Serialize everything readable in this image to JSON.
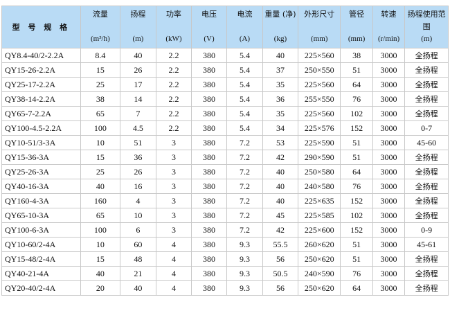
{
  "header": {
    "model": "型 号 规 格",
    "columns": [
      {
        "label": "流量",
        "unit": "(m³/h)"
      },
      {
        "label": "扬程",
        "unit": "(m)"
      },
      {
        "label": "功率",
        "unit": "(kW)"
      },
      {
        "label": "电压",
        "unit": "(V)"
      },
      {
        "label": "电流",
        "unit": "(A)"
      },
      {
        "label": "重量 (净)",
        "unit": "(kg)"
      },
      {
        "label": "外形尺寸",
        "unit": "(mm)"
      },
      {
        "label": "管径",
        "unit": "(mm)"
      },
      {
        "label": "转速",
        "unit": "(r/min)"
      },
      {
        "label": "扬程使用范围",
        "unit": "(m)"
      }
    ]
  },
  "rows": [
    [
      "QY8.4-40/2-2.2A",
      "8.4",
      "40",
      "2.2",
      "380",
      "5.4",
      "40",
      "225×560",
      "38",
      "3000",
      "全扬程"
    ],
    [
      "QY15-26-2.2A",
      "15",
      "26",
      "2.2",
      "380",
      "5.4",
      "37",
      "250×550",
      "51",
      "3000",
      "全扬程"
    ],
    [
      "QY25-17-2.2A",
      "25",
      "17",
      "2.2",
      "380",
      "5.4",
      "35",
      "225×560",
      "64",
      "3000",
      "全扬程"
    ],
    [
      "QY38-14-2.2A",
      "38",
      "14",
      "2.2",
      "380",
      "5.4",
      "36",
      "255×550",
      "76",
      "3000",
      "全扬程"
    ],
    [
      "QY65-7-2.2A",
      "65",
      "7",
      "2.2",
      "380",
      "5.4",
      "35",
      "225×560",
      "102",
      "3000",
      "全扬程"
    ],
    [
      "QY100-4.5-2.2A",
      "100",
      "4.5",
      "2.2",
      "380",
      "5.4",
      "34",
      "225×576",
      "152",
      "3000",
      "0-7"
    ],
    [
      "QY10-51/3-3A",
      "10",
      "51",
      "3",
      "380",
      "7.2",
      "53",
      "225×590",
      "51",
      "3000",
      "45-60"
    ],
    [
      "QY15-36-3A",
      "15",
      "36",
      "3",
      "380",
      "7.2",
      "42",
      "290×590",
      "51",
      "3000",
      "全扬程"
    ],
    [
      "QY25-26-3A",
      "25",
      "26",
      "3",
      "380",
      "7.2",
      "40",
      "250×580",
      "64",
      "3000",
      "全扬程"
    ],
    [
      "QY40-16-3A",
      "40",
      "16",
      "3",
      "380",
      "7.2",
      "40",
      "240×580",
      "76",
      "3000",
      "全扬程"
    ],
    [
      "QY160-4-3A",
      "160",
      "4",
      "3",
      "380",
      "7.2",
      "40",
      "225×635",
      "152",
      "3000",
      "全扬程"
    ],
    [
      "QY65-10-3A",
      "65",
      "10",
      "3",
      "380",
      "7.2",
      "45",
      "225×585",
      "102",
      "3000",
      "全扬程"
    ],
    [
      "QY100-6-3A",
      "100",
      "6",
      "3",
      "380",
      "7.2",
      "42",
      "225×600",
      "152",
      "3000",
      "0-9"
    ],
    [
      "QY10-60/2-4A",
      "10",
      "60",
      "4",
      "380",
      "9.3",
      "55.5",
      "260×620",
      "51",
      "3000",
      "45-61"
    ],
    [
      "QY15-48/2-4A",
      "15",
      "48",
      "4",
      "380",
      "9.3",
      "56",
      "250×620",
      "51",
      "3000",
      "全扬程"
    ],
    [
      "QY40-21-4A",
      "40",
      "21",
      "4",
      "380",
      "9.3",
      "50.5",
      "240×590",
      "76",
      "3000",
      "全扬程"
    ],
    [
      "QY20-40/2-4A",
      "20",
      "40",
      "4",
      "380",
      "9.3",
      "56",
      "250×620",
      "64",
      "3000",
      "全扬程"
    ]
  ]
}
